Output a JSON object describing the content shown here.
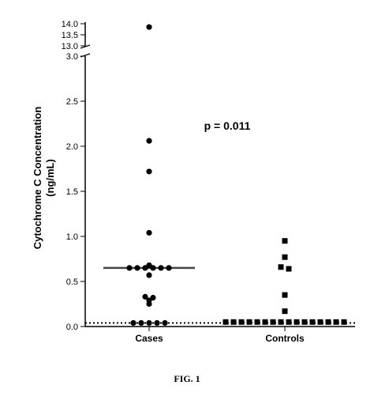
{
  "caption": "FIG. 1",
  "chart_data": {
    "type": "scatter",
    "ylabel_line1": "Cytochrome C Concentration",
    "ylabel_line2": "(ng/mL)",
    "categories": [
      "Cases",
      "Controls"
    ],
    "yaxis_lower": {
      "range": [
        0,
        3.0
      ],
      "ticks": [
        "0.0",
        "0.5",
        "1.0",
        "1.5",
        "2.0",
        "2.5",
        "3.0"
      ]
    },
    "yaxis_upper": {
      "range": [
        13.0,
        14.0
      ],
      "ticks": [
        "13.0",
        "13.5",
        "14.0"
      ]
    },
    "annotation": "p = 0.011",
    "reference_line": {
      "y": 0.04,
      "style": "dotted"
    },
    "series": [
      {
        "category": "Cases",
        "marker": "circle",
        "median": 0.65,
        "points": [
          13.85,
          2.06,
          1.72,
          1.04,
          0.68,
          0.65,
          0.65,
          0.65,
          0.65,
          0.65,
          0.65,
          0.57,
          0.33,
          0.32,
          0.29,
          0.25,
          0.04,
          0.04,
          0.04,
          0.04,
          0.04
        ]
      },
      {
        "category": "Controls",
        "marker": "square",
        "median": 0.04,
        "points": [
          0.95,
          0.77,
          0.66,
          0.64,
          0.35,
          0.17,
          0.05,
          0.05,
          0.05,
          0.05,
          0.05,
          0.05,
          0.05,
          0.05,
          0.05,
          0.05,
          0.05,
          0.05,
          0.05,
          0.05,
          0.05,
          0.05
        ]
      }
    ]
  }
}
